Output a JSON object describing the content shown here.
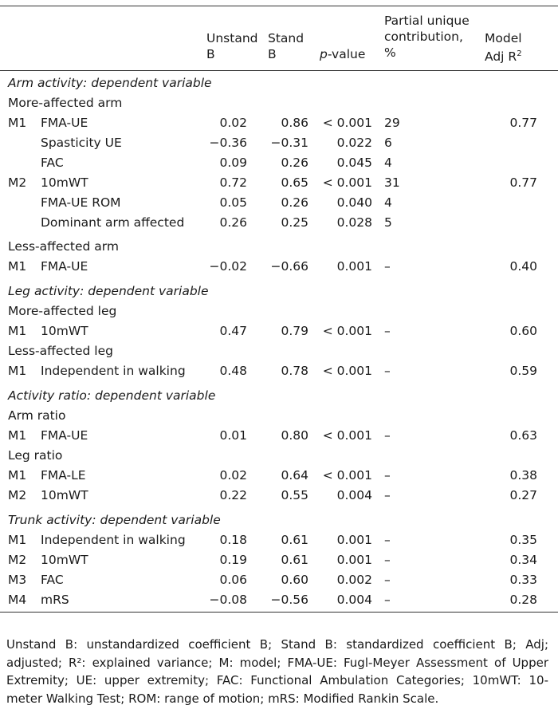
{
  "header": {
    "unstand_b": [
      "Unstand",
      "B"
    ],
    "stand_b": [
      "Stand",
      "B"
    ],
    "p_value_italic": "p",
    "p_value_rest": "-value",
    "partial": [
      "Partial unique",
      "contribution,",
      "%"
    ],
    "model_adj": [
      "Model",
      "Adj R"
    ],
    "model_adj_sup": "2"
  },
  "rows": [
    {
      "type": "section",
      "text": "Arm activity: dependent variable"
    },
    {
      "type": "group",
      "text": "More-affected arm"
    },
    {
      "type": "data",
      "model": "M1",
      "variable": "FMA-UE",
      "unstand_b": "0.02",
      "stand_b": "0.86",
      "p": "< 0.001",
      "partial": "29",
      "adj_r2": "0.77"
    },
    {
      "type": "data",
      "model": "",
      "variable": "Spasticity UE",
      "unstand_b": "−0.36",
      "stand_b": "−0.31",
      "p": "0.022",
      "partial": "6",
      "adj_r2": ""
    },
    {
      "type": "data",
      "model": "",
      "variable": "FAC",
      "unstand_b": "0.09",
      "stand_b": "0.26",
      "p": "0.045",
      "partial": "4",
      "adj_r2": ""
    },
    {
      "type": "data",
      "model": "M2",
      "variable": "10mWT",
      "unstand_b": "0.72",
      "stand_b": "0.65",
      "p": "< 0.001",
      "partial": "31",
      "adj_r2": "0.77"
    },
    {
      "type": "data",
      "model": "",
      "variable": "FMA-UE ROM",
      "unstand_b": "0.05",
      "stand_b": "0.26",
      "p": "0.040",
      "partial": "4",
      "adj_r2": ""
    },
    {
      "type": "data",
      "model": "",
      "variable": "Dominant arm affected",
      "unstand_b": "0.26",
      "stand_b": "0.25",
      "p": "0.028",
      "partial": "5",
      "adj_r2": ""
    },
    {
      "type": "group",
      "text": "Less-affected arm"
    },
    {
      "type": "data",
      "model": "M1",
      "variable": "FMA-UE",
      "unstand_b": "−0.02",
      "stand_b": "−0.66",
      "p": "0.001",
      "partial": "–",
      "adj_r2": "0.40"
    },
    {
      "type": "section",
      "text": "Leg activity: dependent variable"
    },
    {
      "type": "group",
      "text": "More-affected leg"
    },
    {
      "type": "data",
      "model": "M1",
      "variable": "10mWT",
      "unstand_b": "0.47",
      "stand_b": "0.79",
      "p": "< 0.001",
      "partial": "–",
      "adj_r2": "0.60"
    },
    {
      "type": "group",
      "text": "Less-affected leg"
    },
    {
      "type": "data",
      "model": "M1",
      "variable": "Independent in walking",
      "unstand_b": "0.48",
      "stand_b": "0.78",
      "p": "< 0.001",
      "partial": "–",
      "adj_r2": "0.59"
    },
    {
      "type": "section",
      "text": "Activity ratio: dependent variable"
    },
    {
      "type": "group",
      "text": "Arm ratio"
    },
    {
      "type": "data",
      "model": "M1",
      "variable": "FMA-UE",
      "unstand_b": "0.01",
      "stand_b": "0.80",
      "p": "< 0.001",
      "partial": "–",
      "adj_r2": "0.63"
    },
    {
      "type": "group",
      "text": "Leg ratio"
    },
    {
      "type": "data",
      "model": "M1",
      "variable": "FMA-LE",
      "unstand_b": "0.02",
      "stand_b": "0.64",
      "p": "< 0.001",
      "partial": "–",
      "adj_r2": "0.38"
    },
    {
      "type": "data",
      "model": "M2",
      "variable": "10mWT",
      "unstand_b": "0.22",
      "stand_b": "0.55",
      "p": "0.004",
      "partial": "–",
      "adj_r2": "0.27"
    },
    {
      "type": "section",
      "text": "Trunk activity: dependent variable"
    },
    {
      "type": "data",
      "model": "M1",
      "variable": "Independent in walking",
      "unstand_b": "0.18",
      "stand_b": "0.61",
      "p": "0.001",
      "partial": "–",
      "adj_r2": "0.35"
    },
    {
      "type": "data",
      "model": "M2",
      "variable": "10mWT",
      "unstand_b": "0.19",
      "stand_b": "0.61",
      "p": "0.001",
      "partial": "–",
      "adj_r2": "0.34"
    },
    {
      "type": "data",
      "model": "M3",
      "variable": "FAC",
      "unstand_b": "0.06",
      "stand_b": "0.60",
      "p": "0.002",
      "partial": "–",
      "adj_r2": "0.33"
    },
    {
      "type": "data",
      "model": "M4",
      "variable": "mRS",
      "unstand_b": "−0.08",
      "stand_b": "−0.56",
      "p": "0.004",
      "partial": "–",
      "adj_r2": "0.28"
    }
  ],
  "footnote": "Unstand B: unstandardized coefficient B; Stand B: standardized coefficient B; Adj; adjusted; R²: explained variance; M: model; FMA-UE: Fugl-Meyer Assessment of Upper Extremity; UE: upper extremity; FAC: Functional Ambulation Categories; 10mWT: 10-meter Walking Test; ROM: range of motion; mRS: Modified Rankin Scale."
}
